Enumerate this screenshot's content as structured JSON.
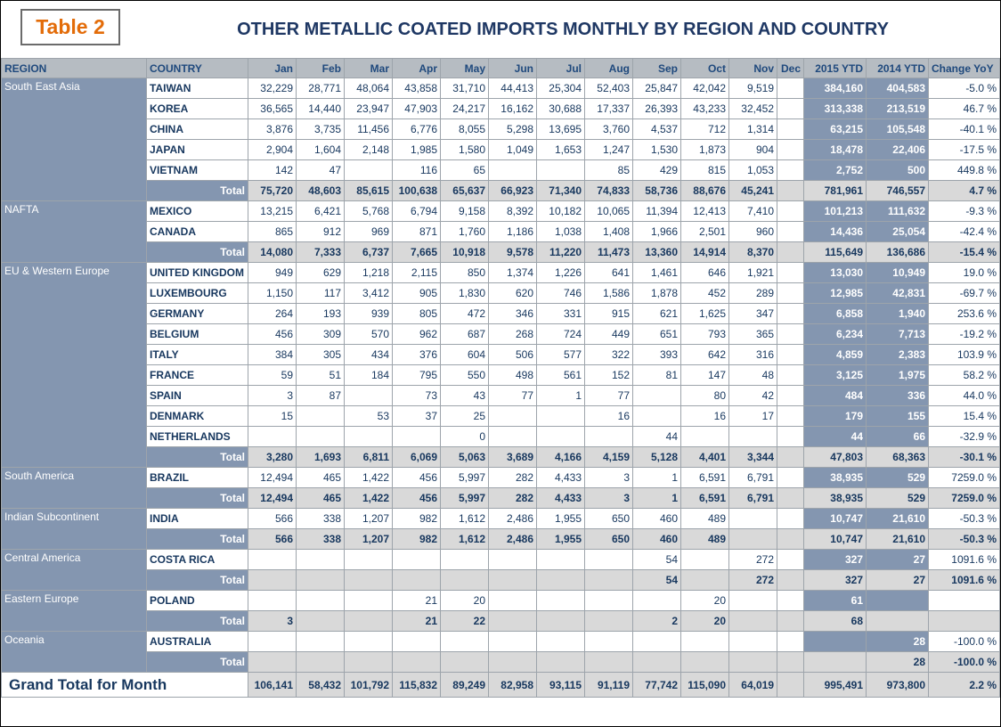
{
  "header": {
    "badge": "Table 2",
    "title": "OTHER METALLIC COATED IMPORTS MONTHLY BY REGION AND COUNTRY"
  },
  "colors": {
    "accent_orange": "#E36C09",
    "title_navy": "#1F3864",
    "region_bg": "#8496B0",
    "header_row_bg": "#B6BCC2",
    "total_row_bg": "#D9D9D9",
    "grid_border": "#9DA4AB"
  },
  "table": {
    "columns": [
      "REGION",
      "COUNTRY",
      "Jan",
      "Feb",
      "Mar",
      "Apr",
      "May",
      "Jun",
      "Jul",
      "Aug",
      "Sep",
      "Oct",
      "Nov",
      "Dec",
      "2015 YTD",
      "2014 YTD",
      "Change YoY"
    ],
    "total_label": "Total",
    "grand_total_label": "Grand Total for Month",
    "groups": [
      {
        "region": "South East Asia",
        "countries": [
          {
            "name": "TAIWAN",
            "months": [
              "32,229",
              "28,771",
              "48,064",
              "43,858",
              "31,710",
              "44,413",
              "25,304",
              "52,403",
              "25,847",
              "42,042",
              "9,519",
              ""
            ],
            "ytd2015": "384,160",
            "ytd2014": "404,583",
            "change": "-5.0 %"
          },
          {
            "name": "KOREA",
            "months": [
              "36,565",
              "14,440",
              "23,947",
              "47,903",
              "24,217",
              "16,162",
              "30,688",
              "17,337",
              "26,393",
              "43,233",
              "32,452",
              ""
            ],
            "ytd2015": "313,338",
            "ytd2014": "213,519",
            "change": "46.7 %"
          },
          {
            "name": "CHINA",
            "months": [
              "3,876",
              "3,735",
              "11,456",
              "6,776",
              "8,055",
              "5,298",
              "13,695",
              "3,760",
              "4,537",
              "712",
              "1,314",
              ""
            ],
            "ytd2015": "63,215",
            "ytd2014": "105,548",
            "change": "-40.1 %"
          },
          {
            "name": "JAPAN",
            "months": [
              "2,904",
              "1,604",
              "2,148",
              "1,985",
              "1,580",
              "1,049",
              "1,653",
              "1,247",
              "1,530",
              "1,873",
              "904",
              ""
            ],
            "ytd2015": "18,478",
            "ytd2014": "22,406",
            "change": "-17.5 %"
          },
          {
            "name": "VIETNAM",
            "months": [
              "142",
              "47",
              "",
              "116",
              "65",
              "",
              "",
              "85",
              "429",
              "815",
              "1,053",
              ""
            ],
            "ytd2015": "2,752",
            "ytd2014": "500",
            "change": "449.8 %"
          }
        ],
        "total": {
          "months": [
            "75,720",
            "48,603",
            "85,615",
            "100,638",
            "65,637",
            "66,923",
            "71,340",
            "74,833",
            "58,736",
            "88,676",
            "45,241",
            ""
          ],
          "ytd2015": "781,961",
          "ytd2014": "746,557",
          "change": "4.7 %"
        }
      },
      {
        "region": "NAFTA",
        "countries": [
          {
            "name": "MEXICO",
            "months": [
              "13,215",
              "6,421",
              "5,768",
              "6,794",
              "9,158",
              "8,392",
              "10,182",
              "10,065",
              "11,394",
              "12,413",
              "7,410",
              ""
            ],
            "ytd2015": "101,213",
            "ytd2014": "111,632",
            "change": "-9.3 %"
          },
          {
            "name": "CANADA",
            "months": [
              "865",
              "912",
              "969",
              "871",
              "1,760",
              "1,186",
              "1,038",
              "1,408",
              "1,966",
              "2,501",
              "960",
              ""
            ],
            "ytd2015": "14,436",
            "ytd2014": "25,054",
            "change": "-42.4 %"
          }
        ],
        "total": {
          "months": [
            "14,080",
            "7,333",
            "6,737",
            "7,665",
            "10,918",
            "9,578",
            "11,220",
            "11,473",
            "13,360",
            "14,914",
            "8,370",
            ""
          ],
          "ytd2015": "115,649",
          "ytd2014": "136,686",
          "change": "-15.4 %"
        }
      },
      {
        "region": "EU & Western Europe",
        "countries": [
          {
            "name": "UNITED KINGDOM",
            "months": [
              "949",
              "629",
              "1,218",
              "2,115",
              "850",
              "1,374",
              "1,226",
              "641",
              "1,461",
              "646",
              "1,921",
              ""
            ],
            "ytd2015": "13,030",
            "ytd2014": "10,949",
            "change": "19.0 %"
          },
          {
            "name": "LUXEMBOURG",
            "months": [
              "1,150",
              "117",
              "3,412",
              "905",
              "1,830",
              "620",
              "746",
              "1,586",
              "1,878",
              "452",
              "289",
              ""
            ],
            "ytd2015": "12,985",
            "ytd2014": "42,831",
            "change": "-69.7 %"
          },
          {
            "name": "GERMANY",
            "months": [
              "264",
              "193",
              "939",
              "805",
              "472",
              "346",
              "331",
              "915",
              "621",
              "1,625",
              "347",
              ""
            ],
            "ytd2015": "6,858",
            "ytd2014": "1,940",
            "change": "253.6 %"
          },
          {
            "name": "BELGIUM",
            "months": [
              "456",
              "309",
              "570",
              "962",
              "687",
              "268",
              "724",
              "449",
              "651",
              "793",
              "365",
              ""
            ],
            "ytd2015": "6,234",
            "ytd2014": "7,713",
            "change": "-19.2 %"
          },
          {
            "name": "ITALY",
            "months": [
              "384",
              "305",
              "434",
              "376",
              "604",
              "506",
              "577",
              "322",
              "393",
              "642",
              "316",
              ""
            ],
            "ytd2015": "4,859",
            "ytd2014": "2,383",
            "change": "103.9 %"
          },
          {
            "name": "FRANCE",
            "months": [
              "59",
              "51",
              "184",
              "795",
              "550",
              "498",
              "561",
              "152",
              "81",
              "147",
              "48",
              ""
            ],
            "ytd2015": "3,125",
            "ytd2014": "1,975",
            "change": "58.2 %"
          },
          {
            "name": "SPAIN",
            "months": [
              "3",
              "87",
              "",
              "73",
              "43",
              "77",
              "1",
              "77",
              "",
              "80",
              "42",
              ""
            ],
            "ytd2015": "484",
            "ytd2014": "336",
            "change": "44.0 %"
          },
          {
            "name": "DENMARK",
            "months": [
              "15",
              "",
              "53",
              "37",
              "25",
              "",
              "",
              "16",
              "",
              "16",
              "17",
              ""
            ],
            "ytd2015": "179",
            "ytd2014": "155",
            "change": "15.4 %"
          },
          {
            "name": "NETHERLANDS",
            "months": [
              "",
              "",
              "",
              "",
              "0",
              "",
              "",
              "",
              "44",
              "",
              "",
              ""
            ],
            "ytd2015": "44",
            "ytd2014": "66",
            "change": "-32.9 %"
          }
        ],
        "total": {
          "months": [
            "3,280",
            "1,693",
            "6,811",
            "6,069",
            "5,063",
            "3,689",
            "4,166",
            "4,159",
            "5,128",
            "4,401",
            "3,344",
            ""
          ],
          "ytd2015": "47,803",
          "ytd2014": "68,363",
          "change": "-30.1 %"
        }
      },
      {
        "region": "South America",
        "countries": [
          {
            "name": "BRAZIL",
            "months": [
              "12,494",
              "465",
              "1,422",
              "456",
              "5,997",
              "282",
              "4,433",
              "3",
              "1",
              "6,591",
              "6,791",
              ""
            ],
            "ytd2015": "38,935",
            "ytd2014": "529",
            "change": "7259.0 %"
          }
        ],
        "total": {
          "months": [
            "12,494",
            "465",
            "1,422",
            "456",
            "5,997",
            "282",
            "4,433",
            "3",
            "1",
            "6,591",
            "6,791",
            ""
          ],
          "ytd2015": "38,935",
          "ytd2014": "529",
          "change": "7259.0 %"
        }
      },
      {
        "region": "Indian Subcontinent",
        "countries": [
          {
            "name": "INDIA",
            "months": [
              "566",
              "338",
              "1,207",
              "982",
              "1,612",
              "2,486",
              "1,955",
              "650",
              "460",
              "489",
              "",
              ""
            ],
            "ytd2015": "10,747",
            "ytd2014": "21,610",
            "change": "-50.3 %"
          }
        ],
        "total": {
          "months": [
            "566",
            "338",
            "1,207",
            "982",
            "1,612",
            "2,486",
            "1,955",
            "650",
            "460",
            "489",
            "",
            ""
          ],
          "ytd2015": "10,747",
          "ytd2014": "21,610",
          "change": "-50.3 %"
        }
      },
      {
        "region": "Central America",
        "countries": [
          {
            "name": "COSTA RICA",
            "months": [
              "",
              "",
              "",
              "",
              "",
              "",
              "",
              "",
              "54",
              "",
              "272",
              ""
            ],
            "ytd2015": "327",
            "ytd2014": "27",
            "change": "1091.6 %"
          }
        ],
        "total": {
          "months": [
            "",
            "",
            "",
            "",
            "",
            "",
            "",
            "",
            "54",
            "",
            "272",
            ""
          ],
          "ytd2015": "327",
          "ytd2014": "27",
          "change": "1091.6 %"
        }
      },
      {
        "region": "Eastern Europe",
        "countries": [
          {
            "name": "POLAND",
            "months": [
              "",
              "",
              "",
              "21",
              "20",
              "",
              "",
              "",
              "",
              "20",
              "",
              ""
            ],
            "ytd2015": "61",
            "ytd2014": "",
            "change": ""
          }
        ],
        "total": {
          "months": [
            "3",
            "",
            "",
            "21",
            "22",
            "",
            "",
            "",
            "2",
            "20",
            "",
            ""
          ],
          "ytd2015": "68",
          "ytd2014": "",
          "change": ""
        }
      },
      {
        "region": "Oceania",
        "countries": [
          {
            "name": "AUSTRALIA",
            "months": [
              "",
              "",
              "",
              "",
              "",
              "",
              "",
              "",
              "",
              "",
              "",
              ""
            ],
            "ytd2015": "",
            "ytd2014": "28",
            "change": "-100.0 %"
          }
        ],
        "total": {
          "months": [
            "",
            "",
            "",
            "",
            "",
            "",
            "",
            "",
            "",
            "",
            "",
            ""
          ],
          "ytd2015": "",
          "ytd2014": "28",
          "change": "-100.0 %"
        }
      }
    ],
    "grand_total": {
      "months": [
        "106,141",
        "58,432",
        "101,792",
        "115,832",
        "89,249",
        "82,958",
        "93,115",
        "91,119",
        "77,742",
        "115,090",
        "64,019",
        ""
      ],
      "ytd2015": "995,491",
      "ytd2014": "973,800",
      "change": "2.2 %"
    }
  }
}
